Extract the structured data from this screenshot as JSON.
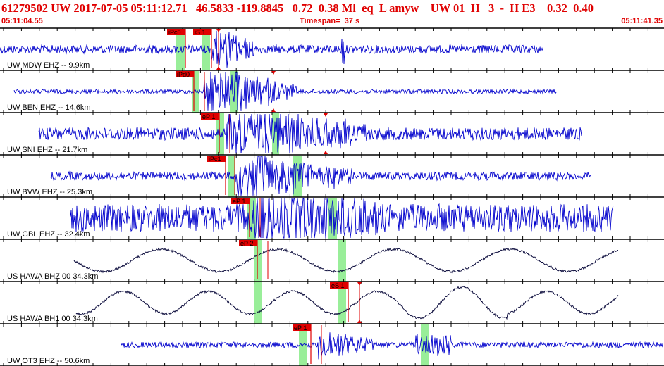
{
  "header": {
    "event_line": "61279502 UW 2017-07-05 05:11:12.71   46.5833 -119.8845   0.72  0.38 Ml  eq  L amyw    UW 01  H   3  -  H E3    0.32  0.40",
    "start_time": "05:11:04.55",
    "timespan": "Timespan=  37 s",
    "end_time": "05:11:41.35"
  },
  "colors": {
    "header_text": "#e00000",
    "blue_trace": "#0000cc",
    "black_trace": "#000033",
    "pick_marker": "#e00000",
    "phase_window": "#99ee99",
    "divider": "#000000",
    "tick": "#000000"
  },
  "traces": [
    {
      "label": "UW MDW EHZ -- 9.9km",
      "color": "blue",
      "picks": [
        {
          "label": "iPc0"
        },
        {
          "label": "iS 1"
        }
      ],
      "windows": 2
    },
    {
      "label": "UW BEN EHZ -- 14.6km",
      "color": "blue",
      "picks": [
        {
          "label": "iPd0"
        }
      ],
      "windows": 2
    },
    {
      "label": "UW SNI EHZ -- 21.7km",
      "color": "blue",
      "picks": [
        {
          "label": "eP 1"
        }
      ],
      "windows": 2
    },
    {
      "label": "UW BVW EHZ -- 25.3km",
      "color": "blue",
      "picks": [
        {
          "label": "iPc1"
        }
      ],
      "windows": 2
    },
    {
      "label": "UW GBL EHZ -- 32.4km",
      "color": "blue",
      "picks": [
        {
          "label": "eP 1"
        }
      ],
      "windows": 2
    },
    {
      "label": "US HAWA BHZ 00 34.3km",
      "color": "black",
      "picks": [
        {
          "label": "eP 2"
        }
      ],
      "windows": 2
    },
    {
      "label": "US HAWA BH1 00 34.3km",
      "color": "black",
      "picks": [
        {
          "label": "eS 1"
        }
      ],
      "windows": 2
    },
    {
      "label": "UW OT3 EHZ -- 50.6km",
      "color": "blue",
      "picks": [
        {
          "label": "eP 1"
        }
      ],
      "windows": 2
    }
  ]
}
